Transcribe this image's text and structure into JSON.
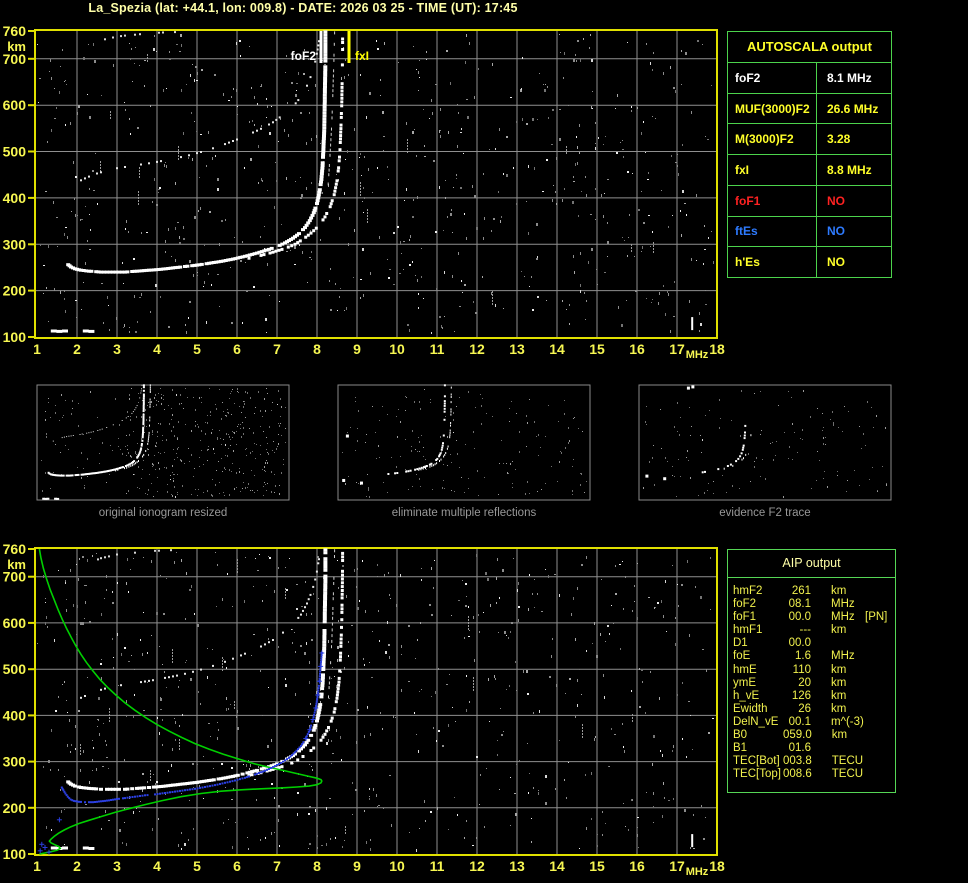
{
  "header": {
    "title": "La_Spezia (lat: +44.1, lon: 009.8) - DATE: 2026 03 25 - TIME (UT): 17:45"
  },
  "colors": {
    "background": "#000000",
    "title_text": "#ffffa8",
    "axis_border": "#e0e000",
    "axis_label": "#f7f752",
    "grid": "#8f8f8f",
    "table_border_green": "#4cd34c",
    "yellow_text": "#ffff29",
    "white_text": "#ffffff",
    "red_text": "#ff2222",
    "blue_text": "#2e7bff",
    "green_profile": "#00cf00",
    "blue_trace": "#2b3fe0",
    "caption_gray": "#989898"
  },
  "axes": {
    "x_ticks": [
      1,
      2,
      3,
      4,
      5,
      6,
      7,
      8,
      9,
      10,
      11,
      12,
      13,
      14,
      15,
      16,
      17,
      18
    ],
    "x_unit": "MHz",
    "y_ticks": [
      760,
      700,
      600,
      500,
      400,
      300,
      200,
      100
    ],
    "y_unit": "km"
  },
  "top_plot": {
    "markers": [
      {
        "label": "foF2",
        "freq": 8.1,
        "color": "#ffffff",
        "side": "left"
      },
      {
        "label": "fxI",
        "freq": 8.8,
        "color": "#ffff00",
        "side": "right"
      }
    ]
  },
  "autoscala": {
    "title": "AUTOSCALA output",
    "rows": [
      {
        "label": "foF2",
        "value": "8.1 MHz",
        "color": "#ffffff"
      },
      {
        "label": "MUF(3000)F2",
        "value": "26.6 MHz",
        "color": "#ffff29"
      },
      {
        "label": "M(3000)F2",
        "value": "3.28",
        "color": "#ffff29"
      },
      {
        "label": "fxI",
        "value": "8.8 MHz",
        "color": "#ffff29"
      },
      {
        "label": "foF1",
        "value": "NO",
        "color": "#ff2222"
      },
      {
        "label": "ftEs",
        "value": "NO",
        "color": "#2e7bff"
      },
      {
        "label": "h'Es",
        "value": "NO",
        "color": "#ffff29"
      }
    ]
  },
  "thumbnails": [
    {
      "caption": "original ionogram resized"
    },
    {
      "caption": "eliminate multiple reflections"
    },
    {
      "caption": "evidence F2 trace"
    }
  ],
  "aip": {
    "title": "AIP output",
    "rows": [
      {
        "label": "hmF2",
        "value": "261",
        "unit": "km",
        "note": ""
      },
      {
        "label": "foF2",
        "value": "08.1",
        "unit": "MHz",
        "note": ""
      },
      {
        "label": "foF1",
        "value": "00.0",
        "unit": "MHz",
        "note": "[PN]"
      },
      {
        "label": "hmF1",
        "value": "---",
        "unit": "km",
        "note": ""
      },
      {
        "label": "D1",
        "value": "00.0",
        "unit": "",
        "note": ""
      },
      {
        "label": "foE",
        "value": "1.6",
        "unit": "MHz",
        "note": ""
      },
      {
        "label": "hmE",
        "value": "110",
        "unit": "km",
        "note": ""
      },
      {
        "label": "ymE",
        "value": "20",
        "unit": "km",
        "note": ""
      },
      {
        "label": "h_vE",
        "value": "126",
        "unit": "km",
        "note": ""
      },
      {
        "label": "Ewidth",
        "value": "26",
        "unit": "km",
        "note": ""
      },
      {
        "label": "DelN_vE",
        "value": "00.1",
        "unit": "m^(-3)",
        "note": ""
      },
      {
        "label": "B0",
        "value": "059.0",
        "unit": "km",
        "note": ""
      },
      {
        "label": "B1",
        "value": "01.6",
        "unit": "",
        "note": ""
      },
      {
        "label": "TEC[Bot]",
        "value": "003.8",
        "unit": "TECU",
        "note": ""
      },
      {
        "label": "TEC[Top]",
        "value": "008.6",
        "unit": "TECU",
        "note": ""
      }
    ]
  },
  "ionogram": {
    "otrace": [
      [
        1.78,
        256
      ],
      [
        1.85,
        251
      ],
      [
        1.95,
        247
      ],
      [
        2.1,
        244
      ],
      [
        2.3,
        242
      ],
      [
        2.6,
        240
      ],
      [
        2.9,
        240
      ],
      [
        3.2,
        240
      ],
      [
        3.5,
        242
      ],
      [
        3.8,
        244
      ],
      [
        4.1,
        246
      ],
      [
        4.4,
        249
      ],
      [
        4.7,
        252
      ],
      [
        5.0,
        255
      ],
      [
        5.3,
        259
      ],
      [
        5.6,
        263
      ],
      [
        5.9,
        268
      ],
      [
        6.2,
        274
      ],
      [
        6.5,
        281
      ],
      [
        6.8,
        289
      ],
      [
        7.0,
        295
      ],
      [
        7.2,
        303
      ],
      [
        7.4,
        313
      ],
      [
        7.55,
        323
      ],
      [
        7.7,
        336
      ],
      [
        7.82,
        351
      ],
      [
        7.92,
        368
      ],
      [
        8.0,
        388
      ],
      [
        8.06,
        412
      ],
      [
        8.11,
        440
      ],
      [
        8.14,
        470
      ],
      [
        8.16,
        505
      ],
      [
        8.18,
        545
      ],
      [
        8.19,
        590
      ],
      [
        8.2,
        640
      ],
      [
        8.21,
        695
      ],
      [
        8.21,
        758
      ]
    ],
    "xtrace": [
      [
        6.3,
        270
      ],
      [
        6.6,
        276
      ],
      [
        6.9,
        283
      ],
      [
        7.2,
        291
      ],
      [
        7.45,
        300
      ],
      [
        7.65,
        311
      ],
      [
        7.85,
        324
      ],
      [
        8.05,
        340
      ],
      [
        8.2,
        359
      ],
      [
        8.33,
        381
      ],
      [
        8.43,
        407
      ],
      [
        8.5,
        437
      ],
      [
        8.55,
        472
      ],
      [
        8.58,
        512
      ],
      [
        8.6,
        557
      ],
      [
        8.62,
        607
      ],
      [
        8.63,
        662
      ],
      [
        8.64,
        720
      ],
      [
        8.64,
        758
      ]
    ],
    "hop2": [
      [
        2.1,
        438
      ],
      [
        2.4,
        450
      ],
      [
        2.7,
        458
      ],
      [
        3.0,
        464
      ],
      [
        3.3,
        468
      ],
      [
        3.6,
        472
      ],
      [
        3.9,
        476
      ],
      [
        4.2,
        481
      ],
      [
        4.5,
        486
      ],
      [
        4.8,
        492
      ],
      [
        5.1,
        499
      ],
      [
        5.4,
        507
      ],
      [
        5.7,
        516
      ],
      [
        6.0,
        526
      ],
      [
        6.3,
        537
      ],
      [
        6.6,
        549
      ],
      [
        6.9,
        563
      ],
      [
        7.15,
        579
      ],
      [
        7.4,
        597
      ],
      [
        7.6,
        618
      ],
      [
        7.75,
        642
      ],
      [
        7.88,
        670
      ],
      [
        7.98,
        702
      ],
      [
        8.05,
        738
      ],
      [
        8.08,
        758
      ]
    ],
    "hop2x": [
      [
        8.28,
        430
      ],
      [
        8.31,
        470
      ],
      [
        8.34,
        514
      ],
      [
        8.37,
        560
      ],
      [
        8.39,
        610
      ],
      [
        8.41,
        663
      ],
      [
        8.43,
        719
      ],
      [
        8.44,
        756
      ]
    ],
    "topscatter": [
      [
        2.45,
        735
      ],
      [
        2.6,
        740
      ],
      [
        2.8,
        744
      ],
      [
        3.0,
        748
      ],
      [
        3.2,
        750
      ],
      [
        3.45,
        752
      ],
      [
        3.7,
        754
      ],
      [
        3.95,
        756
      ],
      [
        4.25,
        757
      ],
      [
        4.55,
        758
      ]
    ],
    "green_profile": [
      [
        1.06,
        760
      ],
      [
        1.1,
        740
      ],
      [
        1.16,
        718
      ],
      [
        1.24,
        695
      ],
      [
        1.33,
        672
      ],
      [
        1.43,
        650
      ],
      [
        1.53,
        628
      ],
      [
        1.63,
        608
      ],
      [
        1.74,
        588
      ],
      [
        1.86,
        568
      ],
      [
        1.98,
        549
      ],
      [
        2.1,
        532
      ],
      [
        2.24,
        514
      ],
      [
        2.4,
        496
      ],
      [
        2.57,
        478
      ],
      [
        2.76,
        461
      ],
      [
        2.97,
        444
      ],
      [
        3.2,
        427
      ],
      [
        3.45,
        411
      ],
      [
        3.72,
        395
      ],
      [
        4.0,
        380
      ],
      [
        4.3,
        366
      ],
      [
        4.62,
        352
      ],
      [
        4.95,
        339
      ],
      [
        5.3,
        327
      ],
      [
        5.66,
        316
      ],
      [
        6.02,
        306
      ],
      [
        6.4,
        296
      ],
      [
        6.78,
        288
      ],
      [
        7.15,
        281
      ],
      [
        7.5,
        274
      ],
      [
        7.8,
        268
      ],
      [
        8.0,
        264
      ],
      [
        8.1,
        261
      ],
      [
        8.12,
        258
      ],
      [
        8.1,
        254
      ],
      [
        8.0,
        250
      ],
      [
        7.8,
        247
      ],
      [
        7.5,
        245
      ],
      [
        7.1,
        243
      ],
      [
        6.6,
        241
      ],
      [
        6.1,
        239
      ],
      [
        5.6,
        236
      ],
      [
        5.1,
        231
      ],
      [
        4.6,
        224
      ],
      [
        4.1,
        215
      ],
      [
        3.7,
        207
      ],
      [
        3.3,
        198
      ],
      [
        2.95,
        190
      ],
      [
        2.6,
        181
      ],
      [
        2.3,
        173
      ],
      [
        2.05,
        166
      ],
      [
        1.85,
        159
      ],
      [
        1.68,
        152
      ],
      [
        1.54,
        145
      ],
      [
        1.43,
        138
      ],
      [
        1.35,
        132
      ],
      [
        1.31,
        128
      ],
      [
        1.35,
        124
      ],
      [
        1.45,
        120
      ],
      [
        1.55,
        116
      ],
      [
        1.58,
        112
      ],
      [
        1.5,
        108
      ],
      [
        1.35,
        105
      ],
      [
        1.18,
        102
      ],
      [
        1.06,
        100
      ]
    ],
    "blue_trace": [
      [
        1.62,
        244
      ],
      [
        1.66,
        238
      ],
      [
        1.71,
        231
      ],
      [
        1.77,
        224
      ],
      [
        1.84,
        218
      ],
      [
        1.92,
        215
      ],
      [
        2.05,
        213
      ],
      [
        2.2,
        212
      ],
      [
        2.4,
        212
      ],
      [
        2.6,
        214
      ],
      [
        2.8,
        216
      ],
      [
        3.0,
        219
      ],
      [
        3.2,
        221
      ],
      [
        3.45,
        224
      ],
      [
        3.7,
        227
      ],
      [
        3.95,
        229
      ],
      [
        4.2,
        232
      ],
      [
        4.45,
        235
      ],
      [
        4.7,
        238
      ],
      [
        4.95,
        241
      ],
      [
        5.2,
        245
      ],
      [
        5.45,
        249
      ],
      [
        5.7,
        254
      ],
      [
        5.95,
        259
      ],
      [
        6.2,
        265
      ],
      [
        6.45,
        272
      ],
      [
        6.7,
        280
      ],
      [
        6.9,
        288
      ],
      [
        7.1,
        297
      ],
      [
        7.3,
        308
      ],
      [
        7.45,
        320
      ],
      [
        7.6,
        334
      ],
      [
        7.72,
        350
      ],
      [
        7.82,
        369
      ],
      [
        7.9,
        391
      ],
      [
        7.97,
        416
      ],
      [
        8.02,
        444
      ],
      [
        8.06,
        474
      ],
      [
        8.09,
        506
      ],
      [
        8.12,
        535
      ]
    ],
    "blue_stray": [
      [
        1.56,
        174
      ],
      [
        1.12,
        121
      ],
      [
        1.2,
        114
      ],
      [
        1.08,
        107
      ],
      [
        1.3,
        104
      ]
    ],
    "e_dashes": [
      [
        1.42,
        113
      ],
      [
        1.56,
        112
      ],
      [
        1.7,
        113
      ],
      [
        2.22,
        113
      ],
      [
        2.36,
        112
      ]
    ],
    "bright_streak_freq": 17.38
  }
}
